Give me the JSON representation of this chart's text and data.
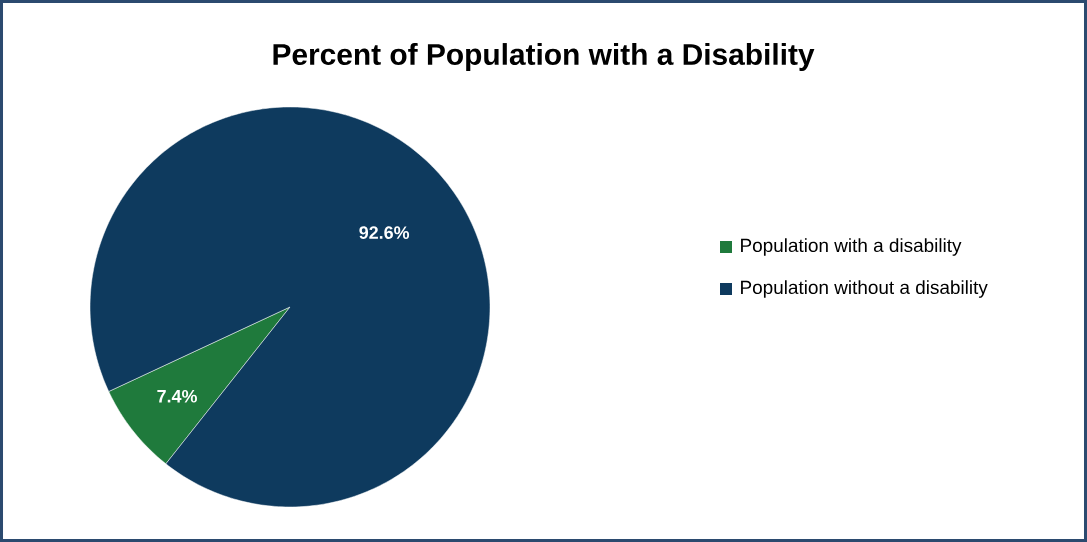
{
  "chart_data": {
    "type": "pie",
    "title": "Percent of Population with a Disability",
    "categories": [
      "Population with a disability",
      "Population without a disability"
    ],
    "values": [
      7.4,
      92.6
    ],
    "colors": [
      "#1f7a3c",
      "#0e3a5e"
    ],
    "value_labels": [
      "7.4%",
      "92.6%"
    ],
    "legend": "right"
  }
}
